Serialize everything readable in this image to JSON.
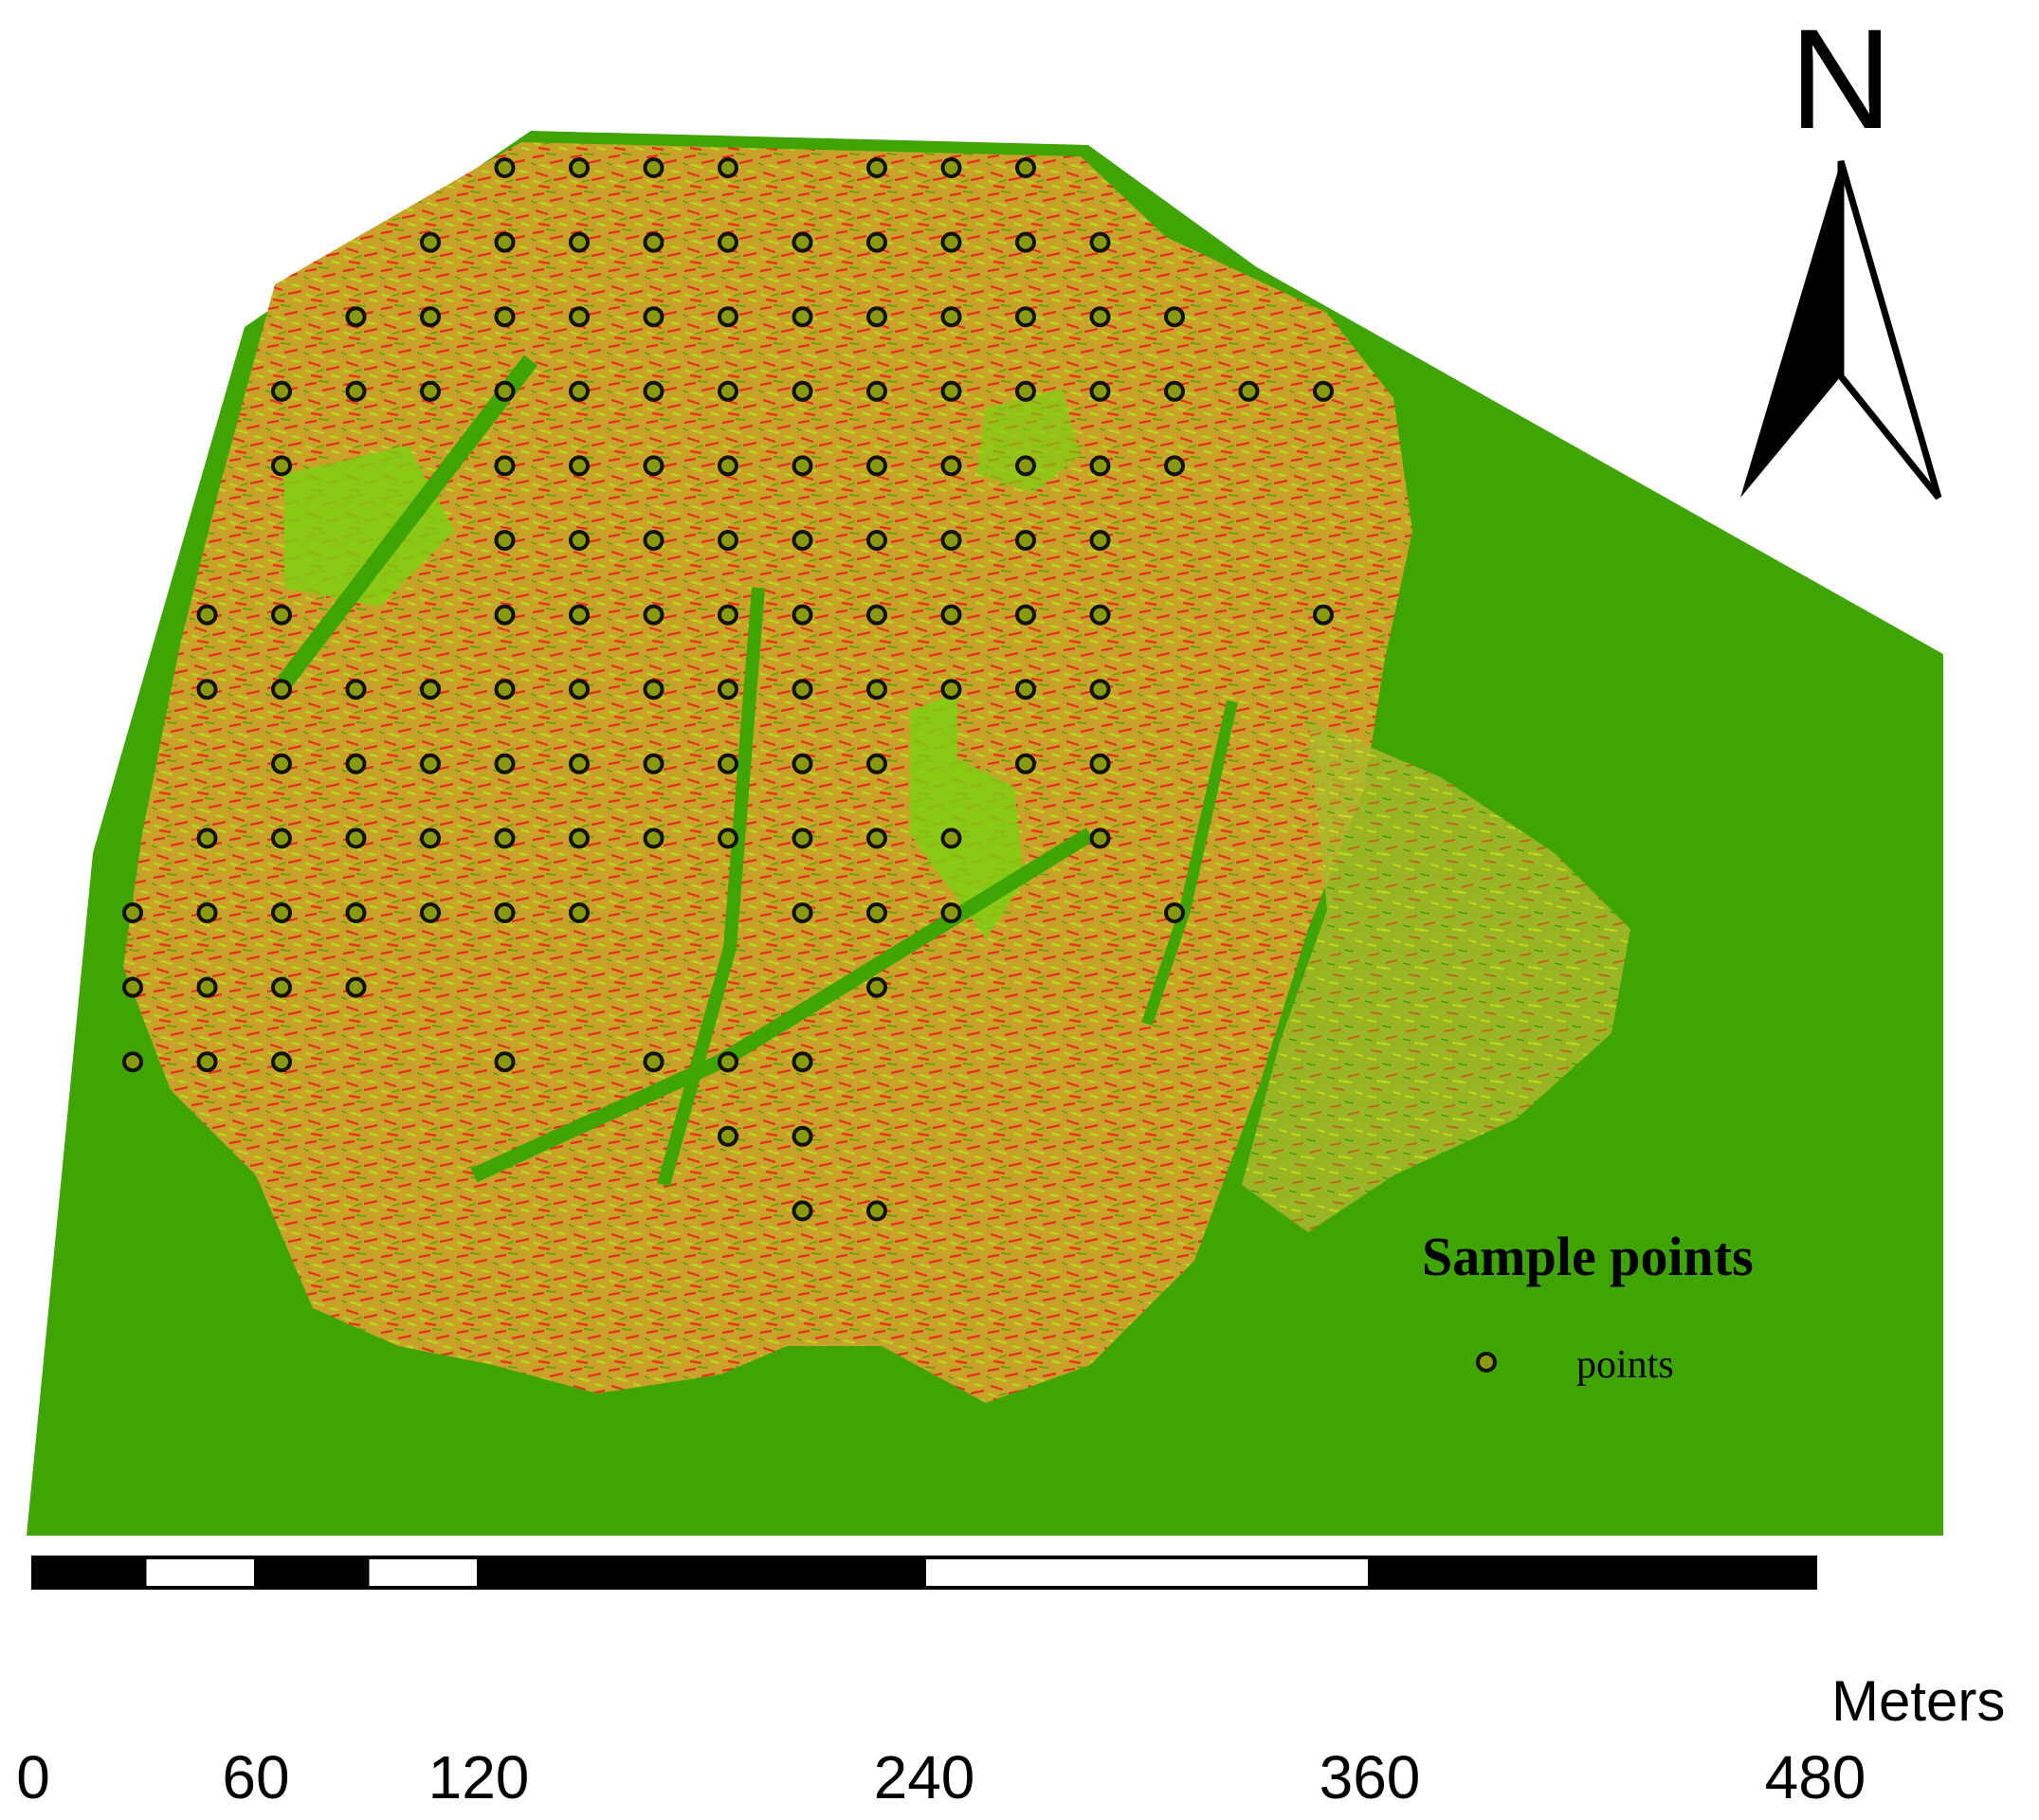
{
  "colors": {
    "background_green": "#3fa404",
    "field_orange": "#d99a2a",
    "field_red": "#e2321a",
    "field_yellow": "#c9d61c",
    "light_green": "#7fcf12",
    "point_fill": "#8a9a10",
    "point_stroke": "#111111"
  },
  "north_arrow": {
    "letter": "N",
    "icon": "north-arrow-icon"
  },
  "legend": {
    "title": "Sample points",
    "item_label": "points",
    "icon": "circle-marker-icon"
  },
  "scale_bar": {
    "units": "Meters",
    "max_value": 480,
    "ticks": [
      "0",
      "60",
      "120",
      "240",
      "360",
      "480"
    ],
    "tick_values": [
      0,
      60,
      120,
      240,
      360,
      480
    ],
    "segments": [
      [
        0,
        30
      ],
      [
        30,
        60
      ],
      [
        60,
        90
      ],
      [
        90,
        120
      ],
      [
        120,
        240
      ],
      [
        240,
        360
      ],
      [
        360,
        480
      ]
    ]
  },
  "sample_grid": {
    "rows": [
      {
        "row": 0,
        "cols": [
          5,
          6,
          7,
          8,
          10,
          11,
          12
        ]
      },
      {
        "row": 1,
        "cols": [
          4,
          5,
          6,
          7,
          8,
          9,
          10,
          11,
          12,
          13
        ]
      },
      {
        "row": 2,
        "cols": [
          3,
          4,
          5,
          6,
          7,
          8,
          9,
          10,
          11,
          12,
          13,
          14
        ]
      },
      {
        "row": 3,
        "cols": [
          2,
          3,
          4,
          5,
          6,
          7,
          8,
          9,
          10,
          11,
          12,
          13,
          14,
          15,
          16
        ]
      },
      {
        "row": 4,
        "cols": [
          2,
          5,
          6,
          7,
          8,
          9,
          10,
          11,
          12,
          13,
          14
        ]
      },
      {
        "row": 5,
        "cols": [
          5,
          6,
          7,
          8,
          9,
          10,
          11,
          12,
          13
        ]
      },
      {
        "row": 6,
        "cols": [
          1,
          2,
          5,
          6,
          7,
          8,
          9,
          10,
          11,
          12,
          13,
          16
        ]
      },
      {
        "row": 7,
        "cols": [
          1,
          2,
          3,
          4,
          5,
          6,
          7,
          8,
          9,
          10,
          11,
          12,
          13
        ]
      },
      {
        "row": 8,
        "cols": [
          2,
          3,
          4,
          5,
          6,
          7,
          8,
          9,
          10,
          12,
          13
        ]
      },
      {
        "row": 9,
        "cols": [
          1,
          2,
          3,
          4,
          5,
          6,
          7,
          8,
          9,
          10,
          11,
          13
        ]
      },
      {
        "row": 10,
        "cols": [
          0,
          1,
          2,
          3,
          4,
          5,
          6,
          9,
          10,
          11,
          14
        ]
      },
      {
        "row": 11,
        "cols": [
          0,
          1,
          2,
          3,
          10
        ]
      },
      {
        "row": 12,
        "cols": [
          0,
          1,
          2,
          5,
          7,
          8,
          9
        ]
      },
      {
        "row": 13,
        "cols": [
          8,
          9
        ]
      },
      {
        "row": 14,
        "cols": [
          9,
          10
        ]
      }
    ]
  }
}
